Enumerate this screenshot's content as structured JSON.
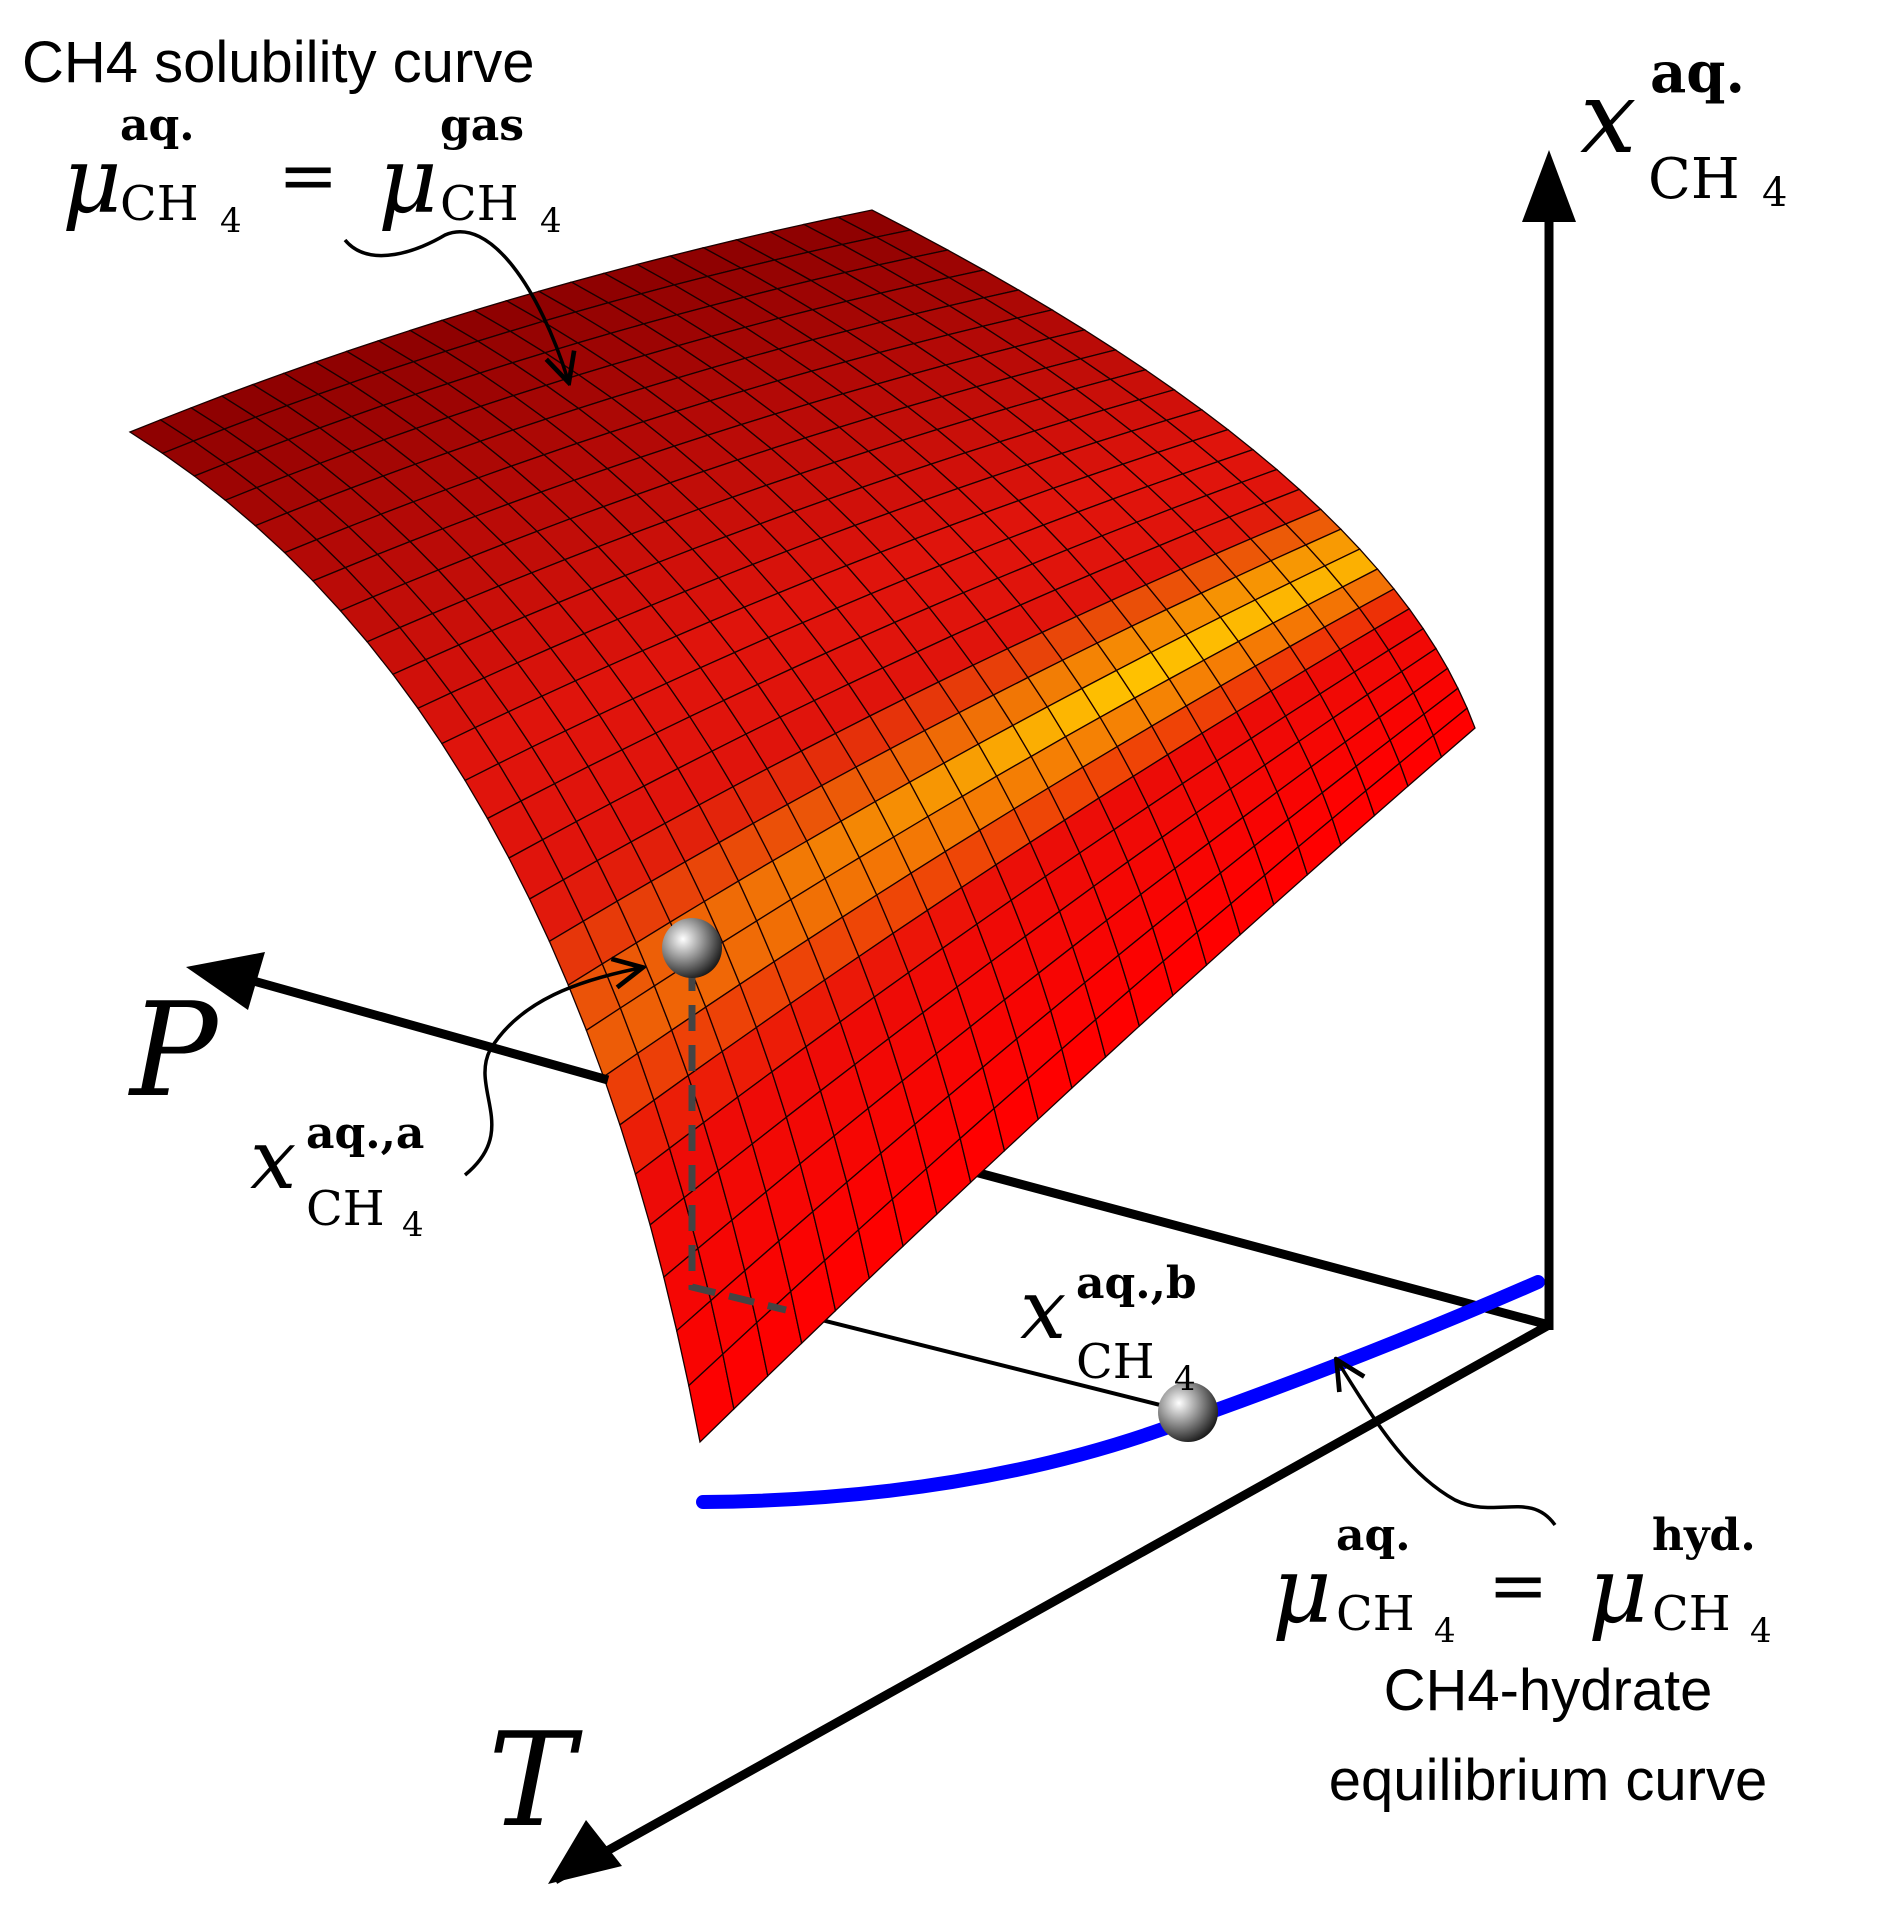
{
  "labels": {
    "solubility_title": "CH4 solubility curve",
    "hydrate_line1": "CH4-hydrate",
    "hydrate_line2": "equilibrium curve"
  },
  "axes": {
    "x_axis_var": "x",
    "x_axis_sup": "aq.",
    "x_axis_sub": "CH",
    "x_axis_sub4": "4",
    "p_axis": "P",
    "t_axis": "T"
  },
  "equations": {
    "solubility": {
      "mu": "μ",
      "lhs_sup": "aq.",
      "lhs_sub": "CH",
      "sub4": "4",
      "equals": "=",
      "rhs_sup": "gas",
      "rhs_sub": "CH"
    },
    "hydrate": {
      "mu": "μ",
      "lhs_sup": "aq.",
      "lhs_sub": "CH",
      "sub4": "4",
      "equals": "=",
      "rhs_sup": "hyd.",
      "rhs_sub": "CH"
    }
  },
  "points": {
    "a": {
      "var": "x",
      "sup": "aq.,a",
      "sub": "CH",
      "sub4": "4"
    },
    "b": {
      "var": "x",
      "sup": "aq.,b",
      "sub": "CH",
      "sub4": "4"
    }
  },
  "colors": {
    "surface_dark": "#8b0000",
    "surface_mid": "#e0140c",
    "surface_hot": "#ffc400",
    "surface_bottom": "#ff0000",
    "hydrate_curve": "#0000ff",
    "axis": "#000000",
    "dashed_line": "#444444"
  }
}
